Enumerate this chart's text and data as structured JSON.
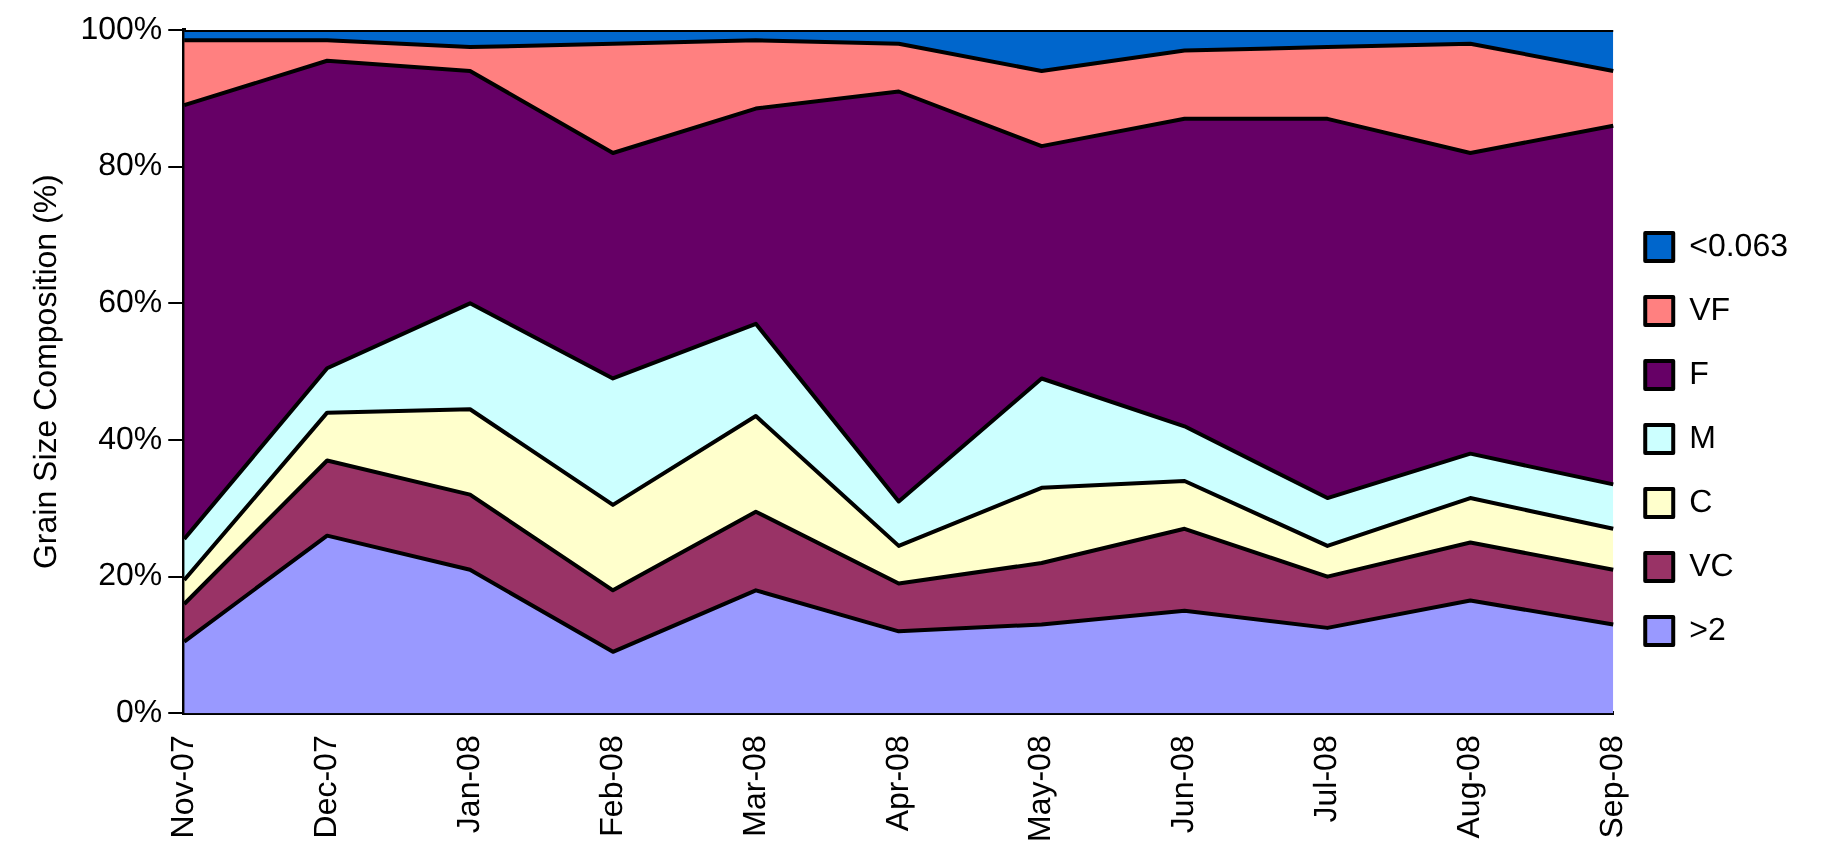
{
  "chart_data": {
    "type": "area",
    "stacked": true,
    "ylabel": "Grain Size Composition (%)",
    "categories": [
      "Nov-07",
      "Dec-07",
      "Jan-08",
      "Feb-08",
      "Mar-08",
      "Apr-08",
      "May-08",
      "Jun-08",
      "Jul-08",
      "Aug-08",
      "Sep-08"
    ],
    "ylim": [
      0,
      100
    ],
    "yticks": [
      {
        "value": 0,
        "label": "0%"
      },
      {
        "value": 20,
        "label": "20%"
      },
      {
        "value": 40,
        "label": "40%"
      },
      {
        "value": 60,
        "label": "60%"
      },
      {
        "value": 80,
        "label": "80%"
      },
      {
        "value": 100,
        "label": "100%"
      }
    ],
    "grid": false,
    "legend": "right",
    "series": [
      {
        "name": ">2",
        "color": "#9999ff",
        "values": [
          10.5,
          26,
          21,
          9,
          18,
          12,
          13,
          15,
          12.5,
          16.5,
          13
        ]
      },
      {
        "name": "VC",
        "color": "#993366",
        "values": [
          5.5,
          11,
          11,
          9,
          11.5,
          7,
          9,
          12,
          7.5,
          8.5,
          8
        ]
      },
      {
        "name": "C",
        "color": "#ffffcc",
        "values": [
          3.5,
          7,
          12.5,
          12.5,
          14,
          5.5,
          11,
          7,
          4.5,
          6.5,
          6
        ]
      },
      {
        "name": "M",
        "color": "#ccffff",
        "values": [
          6,
          6.5,
          15.5,
          18.5,
          13.5,
          6.5,
          16,
          8,
          7,
          6.5,
          6.5
        ]
      },
      {
        "name": "F",
        "color": "#660066",
        "values": [
          63.5,
          45,
          34,
          33,
          31.5,
          60,
          34,
          45,
          55.5,
          44,
          52.5
        ]
      },
      {
        "name": "VF",
        "color": "#ff8080",
        "values": [
          9.5,
          3,
          3.5,
          16,
          10,
          7,
          11,
          10,
          10.5,
          16,
          8
        ]
      },
      {
        "name": "<0.063",
        "color": "#0066cc",
        "values": [
          1.5,
          1.5,
          2.5,
          2,
          1.5,
          2,
          6,
          3,
          2.5,
          2,
          6
        ]
      }
    ]
  }
}
